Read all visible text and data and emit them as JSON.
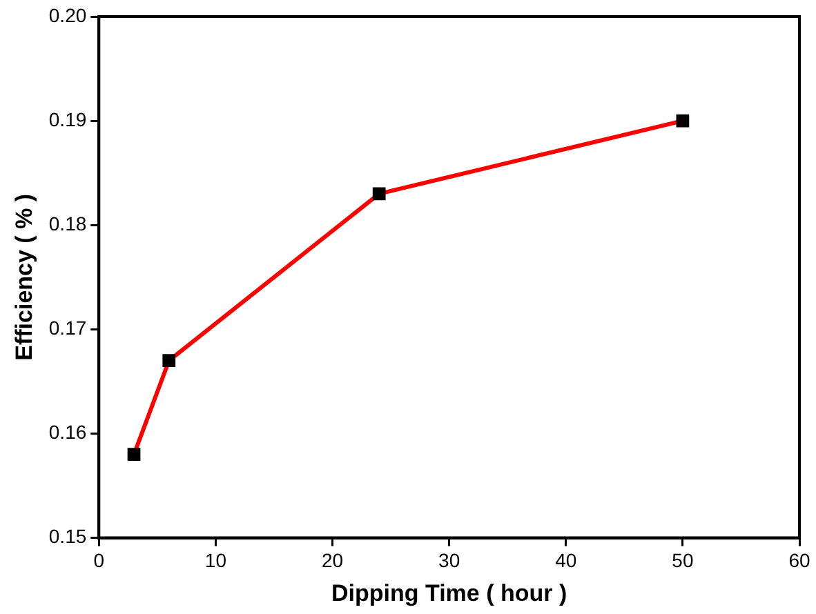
{
  "chart_data": {
    "type": "line",
    "xlabel": "Dipping Time ( hour )",
    "ylabel": "Efficiency ( % )",
    "x": [
      3,
      6,
      24,
      50
    ],
    "series": [
      {
        "color": "#ff0000",
        "values": [
          0.158,
          0.167,
          0.183,
          0.19
        ]
      }
    ],
    "xlim": [
      0,
      60
    ],
    "xticks": [
      0,
      10,
      20,
      30,
      40,
      50,
      60
    ],
    "ylim": [
      0.15,
      0.2
    ],
    "yticks": [
      0.15,
      0.16,
      0.17,
      0.18,
      0.19,
      {
        "value": 0.2,
        "label": "0.20"
      }
    ],
    "grid": false,
    "legend": false,
    "marker": "square",
    "line_style": "solid"
  }
}
